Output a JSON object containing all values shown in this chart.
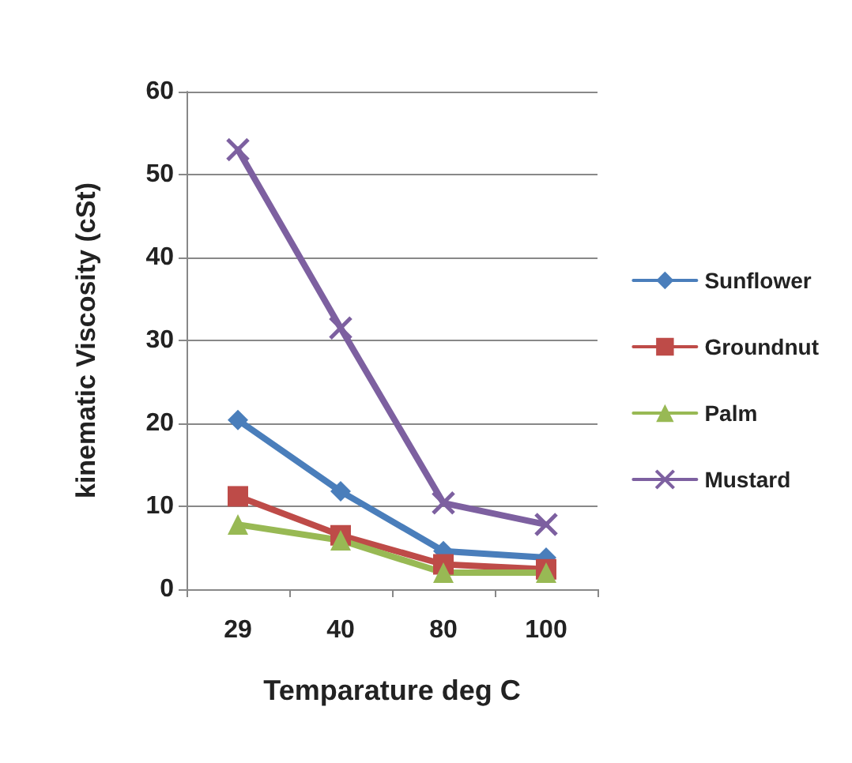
{
  "chart_data": {
    "type": "line",
    "xlabel": "Temparature deg C",
    "ylabel": "kinematic Viscosity (cSt)",
    "categories": [
      "29",
      "40",
      "80",
      "100"
    ],
    "ylim": [
      0,
      60
    ],
    "yticks": [
      0,
      10,
      20,
      30,
      40,
      50,
      60
    ],
    "grid": "y",
    "legend": "right",
    "series": [
      {
        "name": "Sunflower",
        "color": "#4a7ebb",
        "marker": "diamond",
        "values": [
          20.4,
          11.8,
          4.6,
          3.8
        ]
      },
      {
        "name": "Groundnut",
        "color": "#be4b48",
        "marker": "square",
        "values": [
          11.2,
          6.5,
          3.0,
          2.4
        ]
      },
      {
        "name": "Palm",
        "color": "#98b954",
        "marker": "triangle",
        "values": [
          7.8,
          5.9,
          2.0,
          2.0
        ]
      },
      {
        "name": "Mustard",
        "color": "#7d60a0",
        "marker": "cross",
        "values": [
          53,
          31.5,
          10.4,
          7.8
        ]
      }
    ]
  }
}
